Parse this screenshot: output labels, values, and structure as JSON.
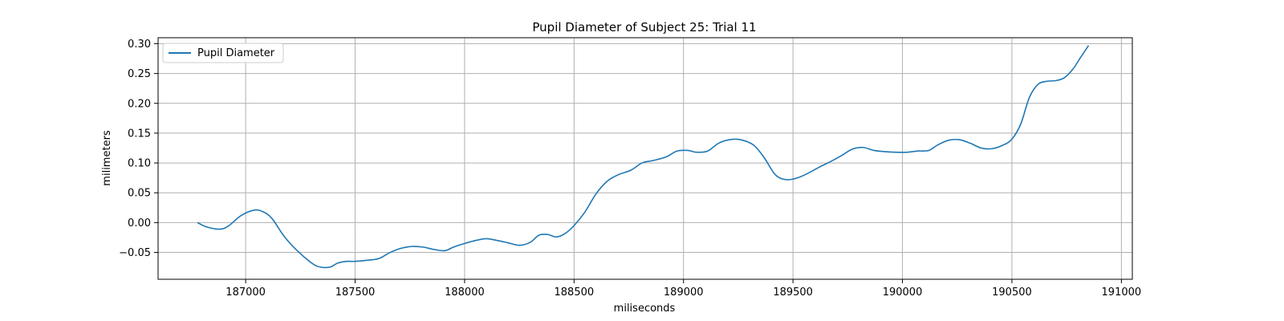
{
  "chart_data": {
    "type": "line",
    "title": "Pupil Diameter of Subject 25: Trial 11",
    "xlabel": "miliseconds",
    "ylabel": "milimeters",
    "xlim": [
      186600,
      191050
    ],
    "ylim": [
      -0.095,
      0.31
    ],
    "x_ticks": [
      187000,
      187500,
      188000,
      188500,
      189000,
      189500,
      190000,
      190500,
      191000
    ],
    "y_ticks": [
      -0.05,
      0.0,
      0.05,
      0.1,
      0.15,
      0.2,
      0.25,
      0.3
    ],
    "x_tick_labels": [
      "187000",
      "187500",
      "188000",
      "188500",
      "189000",
      "189500",
      "190000",
      "190500",
      "191000"
    ],
    "y_tick_labels": [
      "−0.05",
      "0.00",
      "0.05",
      "0.10",
      "0.15",
      "0.20",
      "0.25",
      "0.30"
    ],
    "grid": true,
    "legend_position": "top-left",
    "series": [
      {
        "name": "Pupil Diameter",
        "color": "#1f77b4",
        "x": [
          186780,
          186820,
          186880,
          186920,
          186980,
          187040,
          187080,
          187120,
          187180,
          187250,
          187320,
          187380,
          187420,
          187460,
          187500,
          187560,
          187610,
          187660,
          187710,
          187760,
          187810,
          187860,
          187910,
          187950,
          188000,
          188050,
          188100,
          188150,
          188200,
          188250,
          188300,
          188340,
          188380,
          188420,
          188460,
          188500,
          188550,
          188600,
          188650,
          188700,
          188760,
          188810,
          188860,
          188920,
          188970,
          189020,
          189060,
          189110,
          189160,
          189210,
          189260,
          189320,
          189370,
          189420,
          189470,
          189520,
          189570,
          189620,
          189670,
          189720,
          189770,
          189820,
          189870,
          189920,
          189970,
          190020,
          190070,
          190120,
          190160,
          190210,
          190260,
          190310,
          190360,
          190410,
          190460,
          190500,
          190540,
          190580,
          190620,
          190660,
          190700,
          190740,
          190780,
          190810,
          190850
        ],
        "y": [
          0.0,
          -0.007,
          -0.011,
          -0.006,
          0.012,
          0.021,
          0.018,
          0.007,
          -0.025,
          -0.052,
          -0.072,
          -0.075,
          -0.068,
          -0.065,
          -0.065,
          -0.063,
          -0.06,
          -0.05,
          -0.043,
          -0.04,
          -0.041,
          -0.045,
          -0.047,
          -0.041,
          -0.035,
          -0.03,
          -0.027,
          -0.03,
          -0.034,
          -0.038,
          -0.033,
          -0.021,
          -0.02,
          -0.024,
          -0.018,
          -0.005,
          0.018,
          0.048,
          0.069,
          0.08,
          0.088,
          0.1,
          0.104,
          0.11,
          0.12,
          0.121,
          0.118,
          0.12,
          0.133,
          0.139,
          0.139,
          0.13,
          0.108,
          0.08,
          0.072,
          0.075,
          0.083,
          0.093,
          0.102,
          0.112,
          0.123,
          0.126,
          0.121,
          0.119,
          0.118,
          0.118,
          0.12,
          0.121,
          0.13,
          0.138,
          0.139,
          0.133,
          0.125,
          0.124,
          0.13,
          0.14,
          0.165,
          0.21,
          0.232,
          0.237,
          0.238,
          0.243,
          0.258,
          0.275,
          0.297
        ]
      }
    ]
  }
}
